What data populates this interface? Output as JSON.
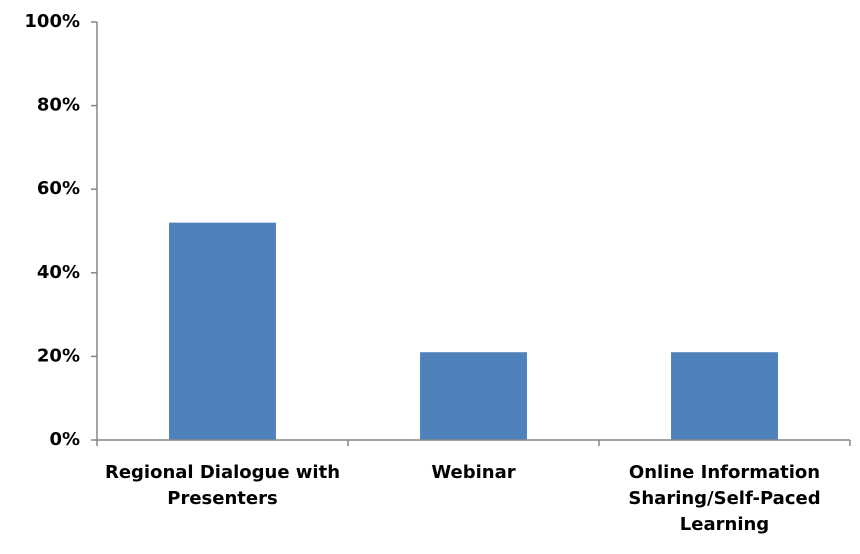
{
  "chart_data": {
    "type": "bar",
    "categories": [
      "Regional Dialogue with Presenters",
      "Webinar",
      "Online Information Sharing/Self-Paced Learning"
    ],
    "values": [
      52,
      21,
      21
    ],
    "color": "#4f81bd",
    "ylim": [
      0,
      100
    ],
    "yticks": [
      {
        "value": 0,
        "label": "0%"
      },
      {
        "value": 20,
        "label": "20%"
      },
      {
        "value": 40,
        "label": "40%"
      },
      {
        "value": 60,
        "label": "60%"
      },
      {
        "value": 80,
        "label": "80%"
      },
      {
        "value": 100,
        "label": "100%"
      }
    ],
    "grid": false
  }
}
